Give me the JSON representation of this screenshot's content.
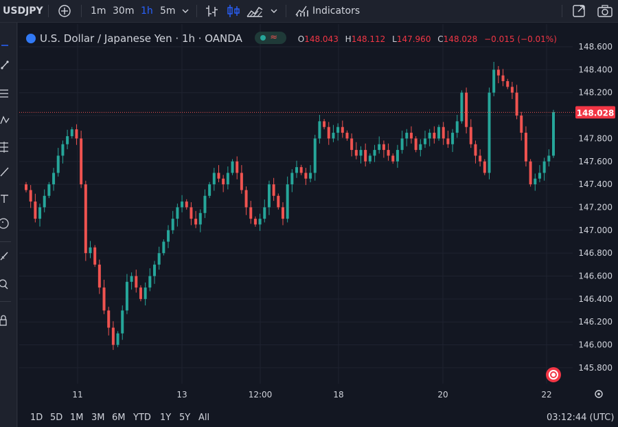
{
  "header": {
    "symbol": "USDJPY",
    "intervals": [
      "1m",
      "30m",
      "1h",
      "5m"
    ],
    "active_interval": "1h",
    "indicators_label": "Indicators"
  },
  "legend": {
    "title": "U.S. Dollar / Japanese Yen · 1h · OANDA",
    "o_label": "O",
    "o": "148.043",
    "h_label": "H",
    "h": "148.112",
    "l_label": "L",
    "l": "147.960",
    "c_label": "C",
    "c": "148.028",
    "change": "−0.015 (−0.01%)"
  },
  "bottom": {
    "ranges": [
      "1D",
      "5D",
      "1M",
      "3M",
      "6M",
      "YTD",
      "1Y",
      "5Y",
      "All"
    ],
    "clock": "03:12:44 (UTC)"
  },
  "colors": {
    "up": "#26a69a",
    "down": "#ef5350",
    "accent": "#2962ff",
    "last_price_bg": "#f23645"
  },
  "chart_data": {
    "type": "candlestick",
    "title": "U.S. Dollar / Japanese Yen · 1h · OANDA",
    "y_tick_labels": [
      "148.600",
      "148.400",
      "148.200",
      "148.000",
      "147.800",
      "147.600",
      "147.400",
      "147.200",
      "147.000",
      "146.800",
      "146.600",
      "146.400",
      "146.200",
      "146.000",
      "145.800"
    ],
    "ylim": [
      145.7,
      148.75
    ],
    "x_tick_labels": [
      "11",
      "13",
      "12:00",
      "18",
      "20",
      "22"
    ],
    "last_price": 148.028,
    "last_price_label": "148.028",
    "grid": true,
    "closes": [
      147.35,
      147.25,
      147.1,
      147.2,
      147.3,
      147.4,
      147.5,
      147.65,
      147.75,
      147.82,
      147.88,
      147.8,
      147.4,
      146.8,
      146.85,
      146.7,
      146.5,
      146.3,
      146.15,
      146.0,
      146.1,
      146.3,
      146.55,
      146.6,
      146.5,
      146.4,
      146.5,
      146.6,
      146.7,
      146.8,
      146.9,
      147.0,
      147.1,
      147.2,
      147.25,
      147.2,
      147.1,
      147.05,
      147.15,
      147.3,
      147.4,
      147.5,
      147.45,
      147.4,
      147.5,
      147.6,
      147.5,
      147.35,
      147.2,
      147.1,
      147.05,
      147.1,
      147.2,
      147.4,
      147.3,
      147.2,
      147.1,
      147.4,
      147.5,
      147.55,
      147.5,
      147.45,
      147.5,
      147.8,
      147.95,
      147.9,
      147.8,
      147.85,
      147.9,
      147.85,
      147.8,
      147.7,
      147.65,
      147.7,
      147.6,
      147.65,
      147.7,
      147.75,
      147.7,
      147.65,
      147.6,
      147.7,
      147.8,
      147.85,
      147.8,
      147.7,
      147.75,
      147.8,
      147.85,
      147.8,
      147.9,
      147.8,
      147.75,
      147.85,
      147.95,
      148.2,
      147.9,
      147.75,
      147.65,
      147.6,
      147.5,
      148.2,
      148.4,
      148.35,
      148.3,
      148.25,
      148.2,
      148.0,
      147.85,
      147.6,
      147.4,
      147.45,
      147.5,
      147.6,
      147.65,
      148.03
    ]
  }
}
